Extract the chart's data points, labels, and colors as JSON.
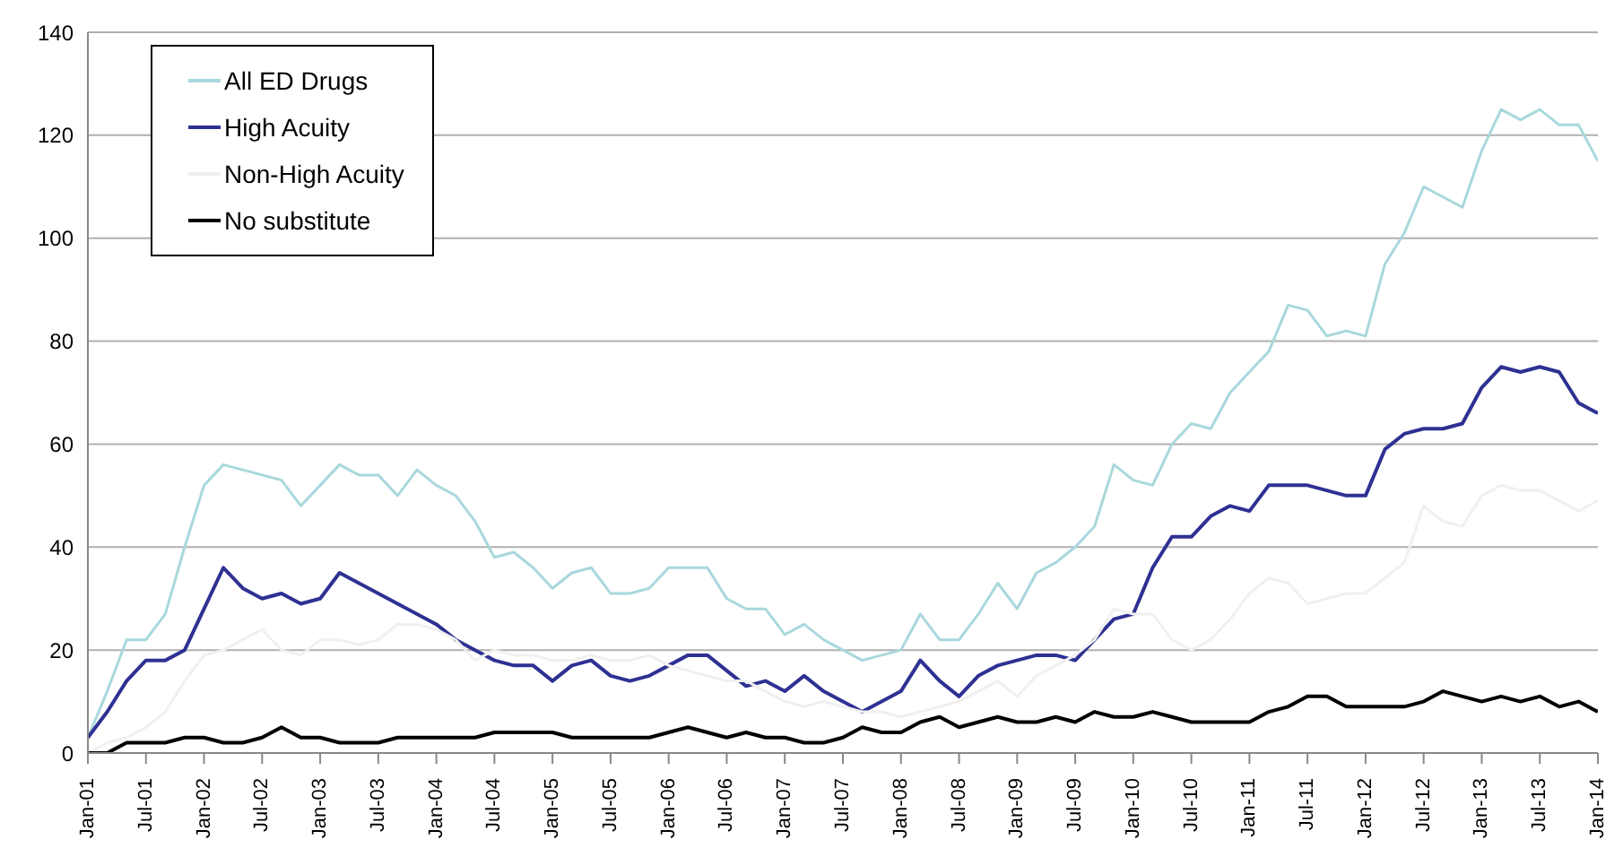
{
  "chart_data": {
    "type": "line",
    "x": [
      "2001-01",
      "2001-03",
      "2001-05",
      "2001-07",
      "2001-09",
      "2001-11",
      "2002-01",
      "2002-03",
      "2002-05",
      "2002-07",
      "2002-09",
      "2002-11",
      "2003-01",
      "2003-03",
      "2003-05",
      "2003-07",
      "2003-09",
      "2003-11",
      "2004-01",
      "2004-03",
      "2004-05",
      "2004-07",
      "2004-09",
      "2004-11",
      "2005-01",
      "2005-03",
      "2005-05",
      "2005-07",
      "2005-09",
      "2005-11",
      "2006-01",
      "2006-03",
      "2006-05",
      "2006-07",
      "2006-09",
      "2006-11",
      "2007-01",
      "2007-03",
      "2007-05",
      "2007-07",
      "2007-09",
      "2007-11",
      "2008-01",
      "2008-03",
      "2008-05",
      "2008-07",
      "2008-09",
      "2008-11",
      "2009-01",
      "2009-03",
      "2009-05",
      "2009-07",
      "2009-09",
      "2009-11",
      "2010-01",
      "2010-03",
      "2010-05",
      "2010-07",
      "2010-09",
      "2010-11",
      "2011-01",
      "2011-03",
      "2011-05",
      "2011-07",
      "2011-09",
      "2011-11",
      "2012-01",
      "2012-03",
      "2012-05",
      "2012-07",
      "2012-09",
      "2012-11",
      "2013-01",
      "2013-03",
      "2013-05",
      "2013-07",
      "2013-09",
      "2013-11",
      "2014-01"
    ],
    "series": [
      {
        "name": "All ED Drugs",
        "color": "#a8d8dc",
        "values": [
          3,
          12,
          22,
          22,
          27,
          40,
          52,
          56,
          55,
          54,
          53,
          48,
          52,
          56,
          54,
          54,
          50,
          55,
          52,
          50,
          45,
          38,
          39,
          36,
          32,
          35,
          36,
          31,
          31,
          32,
          36,
          36,
          36,
          30,
          28,
          28,
          23,
          25,
          22,
          20,
          18,
          19,
          20,
          27,
          22,
          22,
          27,
          33,
          28,
          35,
          37,
          40,
          44,
          56,
          53,
          52,
          60,
          64,
          63,
          70,
          74,
          78,
          87,
          86,
          81,
          82,
          81,
          95,
          101,
          110,
          108,
          106,
          117,
          125,
          123,
          125,
          122,
          122,
          115
        ]
      },
      {
        "name": "High Acuity",
        "color": "#2e3192",
        "values": [
          3,
          8,
          14,
          18,
          18,
          20,
          28,
          36,
          32,
          30,
          31,
          29,
          30,
          35,
          33,
          31,
          29,
          27,
          25,
          22,
          20,
          18,
          17,
          17,
          14,
          17,
          18,
          15,
          14,
          15,
          17,
          19,
          19,
          16,
          13,
          14,
          12,
          15,
          12,
          10,
          8,
          10,
          12,
          18,
          14,
          11,
          15,
          17,
          18,
          19,
          19,
          18,
          22,
          26,
          27,
          36,
          42,
          42,
          46,
          48,
          47,
          52,
          52,
          52,
          51,
          50,
          50,
          59,
          62,
          63,
          63,
          64,
          71,
          75,
          74,
          75,
          74,
          68,
          66
        ]
      },
      {
        "name": "Non-High Acuity",
        "color": "#f0f0f0",
        "values": [
          0,
          2,
          3,
          5,
          8,
          14,
          19,
          20,
          22,
          24,
          20,
          19,
          22,
          22,
          21,
          22,
          25,
          25,
          24,
          22,
          18,
          20,
          19,
          19,
          18,
          18,
          19,
          18,
          18,
          19,
          17,
          16,
          15,
          14,
          14,
          12,
          10,
          9,
          10,
          9,
          8,
          8,
          7,
          8,
          9,
          10,
          12,
          14,
          11,
          15,
          17,
          19,
          22,
          28,
          27,
          27,
          22,
          20,
          22,
          26,
          31,
          34,
          33,
          29,
          30,
          31,
          31,
          34,
          37,
          48,
          45,
          44,
          50,
          52,
          51,
          51,
          49,
          47,
          49
        ]
      },
      {
        "name": "No substitute",
        "color": "#000000",
        "values": [
          0,
          0,
          2,
          2,
          2,
          3,
          3,
          2,
          2,
          3,
          5,
          3,
          3,
          2,
          2,
          2,
          3,
          3,
          3,
          3,
          3,
          4,
          4,
          4,
          4,
          3,
          3,
          3,
          3,
          3,
          4,
          5,
          4,
          3,
          4,
          3,
          3,
          2,
          2,
          3,
          5,
          4,
          4,
          6,
          7,
          5,
          6,
          7,
          6,
          6,
          7,
          6,
          8,
          7,
          7,
          8,
          7,
          6,
          6,
          6,
          6,
          8,
          9,
          11,
          11,
          9,
          9,
          9,
          9,
          10,
          12,
          11,
          10,
          11,
          10,
          11,
          9,
          10,
          8
        ]
      }
    ],
    "xlim": [
      "2001-01",
      "2014-01"
    ],
    "xticks": [
      {
        "value": "2001-01",
        "label": "Jan-01"
      },
      {
        "value": "2001-07",
        "label": "Jul-01"
      },
      {
        "value": "2002-01",
        "label": "Jan-02"
      },
      {
        "value": "2002-07",
        "label": "Jul-02"
      },
      {
        "value": "2003-01",
        "label": "Jan-03"
      },
      {
        "value": "2003-07",
        "label": "Jul-03"
      },
      {
        "value": "2004-01",
        "label": "Jan-04"
      },
      {
        "value": "2004-07",
        "label": "Jul-04"
      },
      {
        "value": "2005-01",
        "label": "Jan-05"
      },
      {
        "value": "2005-07",
        "label": "Jul-05"
      },
      {
        "value": "2006-01",
        "label": "Jan-06"
      },
      {
        "value": "2006-07",
        "label": "Jul-06"
      },
      {
        "value": "2007-01",
        "label": "Jan-07"
      },
      {
        "value": "2007-07",
        "label": "Jul-07"
      },
      {
        "value": "2008-01",
        "label": "Jan-08"
      },
      {
        "value": "2008-07",
        "label": "Jul-08"
      },
      {
        "value": "2009-01",
        "label": "Jan-09"
      },
      {
        "value": "2009-07",
        "label": "Jul-09"
      },
      {
        "value": "2010-01",
        "label": "Jan-10"
      },
      {
        "value": "2010-07",
        "label": "Jul-10"
      },
      {
        "value": "2011-01",
        "label": "Jan-11"
      },
      {
        "value": "2011-07",
        "label": "Jul-11"
      },
      {
        "value": "2012-01",
        "label": "Jan-12"
      },
      {
        "value": "2012-07",
        "label": "Jul-12"
      },
      {
        "value": "2013-01",
        "label": "Jan-13"
      },
      {
        "value": "2013-07",
        "label": "Jul-13"
      },
      {
        "value": "2014-01",
        "label": "Jan-14"
      }
    ],
    "ylim": [
      0,
      140
    ],
    "yticks": [
      0,
      20,
      40,
      60,
      80,
      100,
      120,
      140
    ],
    "grid": "y",
    "legend": "top left",
    "marker": "none",
    "line_style": "solid"
  }
}
